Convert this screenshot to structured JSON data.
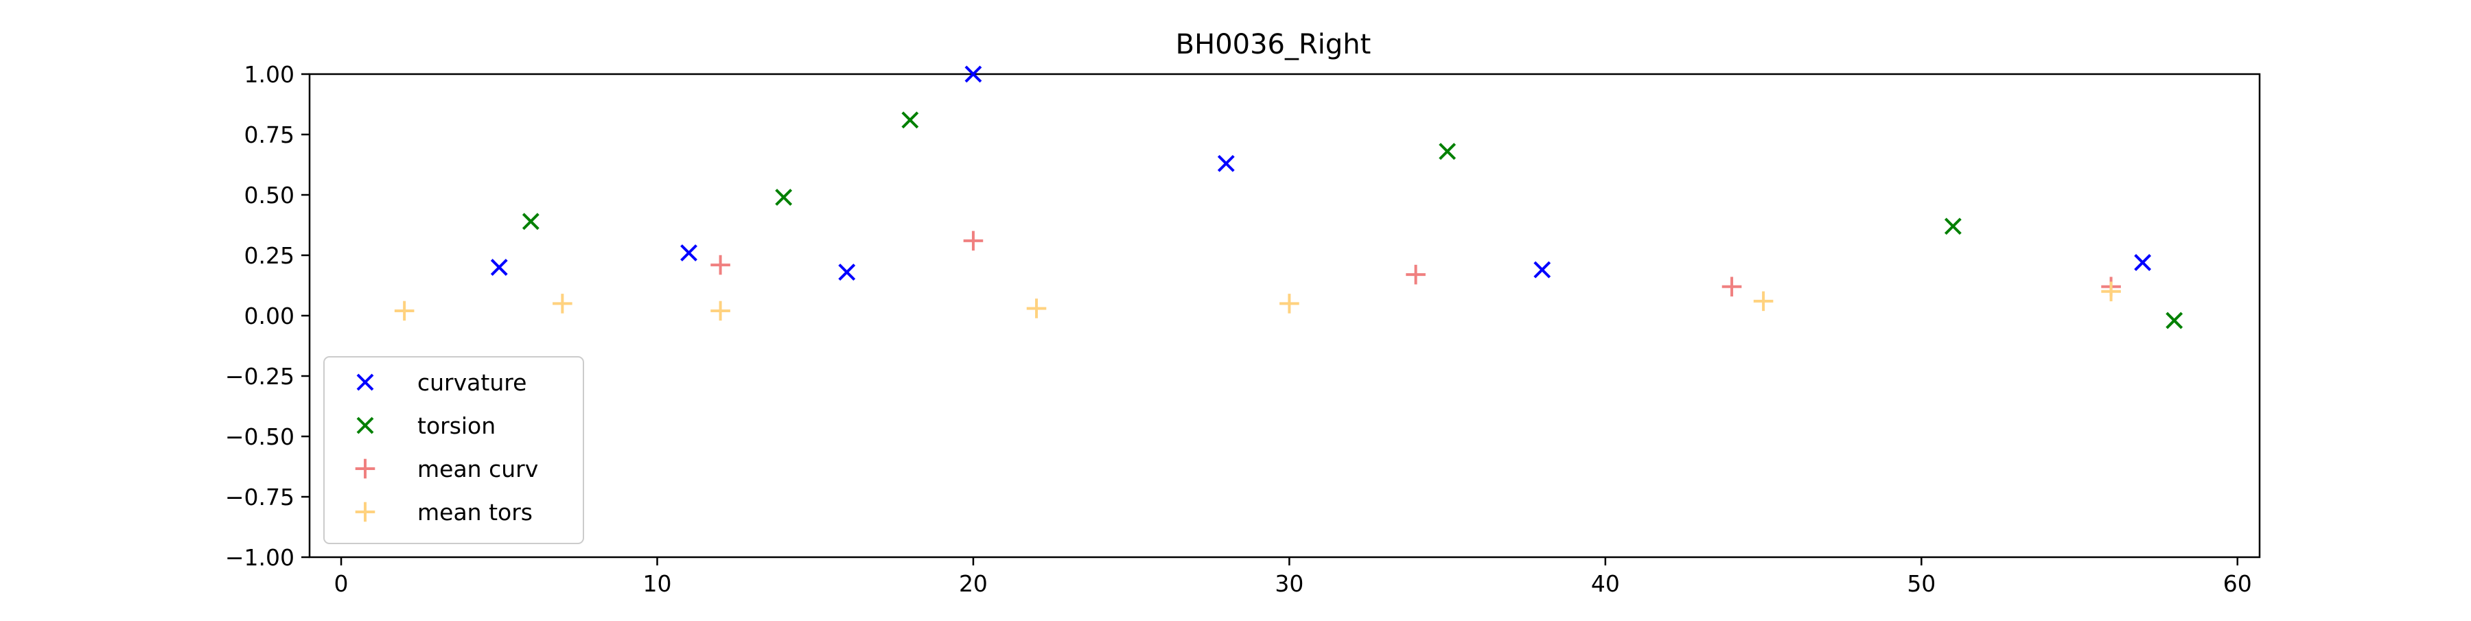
{
  "chart_data": {
    "type": "scatter",
    "title": "BH0036_Right",
    "xlabel": "",
    "ylabel": "",
    "xlim": [
      -1,
      60.7
    ],
    "ylim": [
      -1.0,
      1.0
    ],
    "x_ticks": [
      0,
      10,
      20,
      30,
      40,
      50,
      60
    ],
    "x_tick_labels": [
      "0",
      "10",
      "20",
      "30",
      "40",
      "50",
      "60"
    ],
    "y_ticks": [
      -1.0,
      -0.75,
      -0.5,
      -0.25,
      0.0,
      0.25,
      0.5,
      0.75,
      1.0
    ],
    "y_tick_labels": [
      "−1.00",
      "−0.75",
      "−0.50",
      "−0.25",
      "0.00",
      "0.25",
      "0.50",
      "0.75",
      "1.00"
    ],
    "grid": false,
    "legend_position": "lower-left",
    "series": [
      {
        "name": "curvature",
        "marker": "x",
        "color": "#0000ff",
        "alpha": 1.0,
        "points": [
          [
            5,
            0.2
          ],
          [
            11,
            0.26
          ],
          [
            16,
            0.18
          ],
          [
            20,
            1.0
          ],
          [
            28,
            0.63
          ],
          [
            38,
            0.19
          ],
          [
            57,
            0.22
          ]
        ]
      },
      {
        "name": "torsion",
        "marker": "x",
        "color": "#008000",
        "alpha": 1.0,
        "points": [
          [
            6,
            0.39
          ],
          [
            14,
            0.49
          ],
          [
            18,
            0.81
          ],
          [
            35,
            0.68
          ],
          [
            51,
            0.37
          ],
          [
            58,
            -0.02
          ]
        ]
      },
      {
        "name": "mean curv",
        "marker": "+",
        "color": "#f08080",
        "alpha": 1.0,
        "points": [
          [
            12,
            0.21
          ],
          [
            20,
            0.31
          ],
          [
            34,
            0.17
          ],
          [
            44,
            0.12
          ],
          [
            56,
            0.12
          ]
        ]
      },
      {
        "name": "mean tors",
        "marker": "+",
        "color": "#ffd27f",
        "alpha": 1.0,
        "points": [
          [
            2,
            0.02
          ],
          [
            7,
            0.05
          ],
          [
            12,
            0.02
          ],
          [
            22,
            0.03
          ],
          [
            30,
            0.05
          ],
          [
            45,
            0.06
          ],
          [
            56,
            0.1
          ]
        ]
      }
    ]
  }
}
